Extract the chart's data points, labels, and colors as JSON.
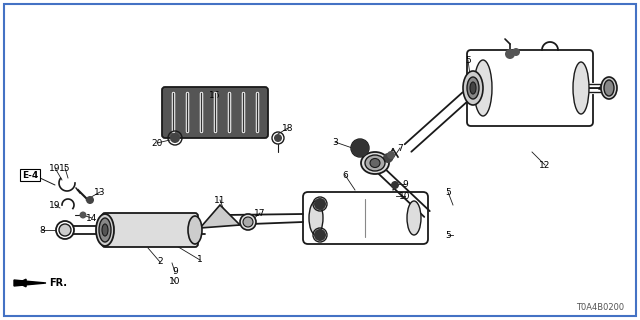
{
  "background_color": "#ffffff",
  "diagram_code": "T0A4B0200",
  "border_color": "#4472c4",
  "border_linewidth": 1.5,
  "line_color": "#1a1a1a",
  "pipe_color": "#222222",
  "fill_dark": "#333333",
  "fill_light": "#aaaaaa",
  "fill_mid": "#666666"
}
